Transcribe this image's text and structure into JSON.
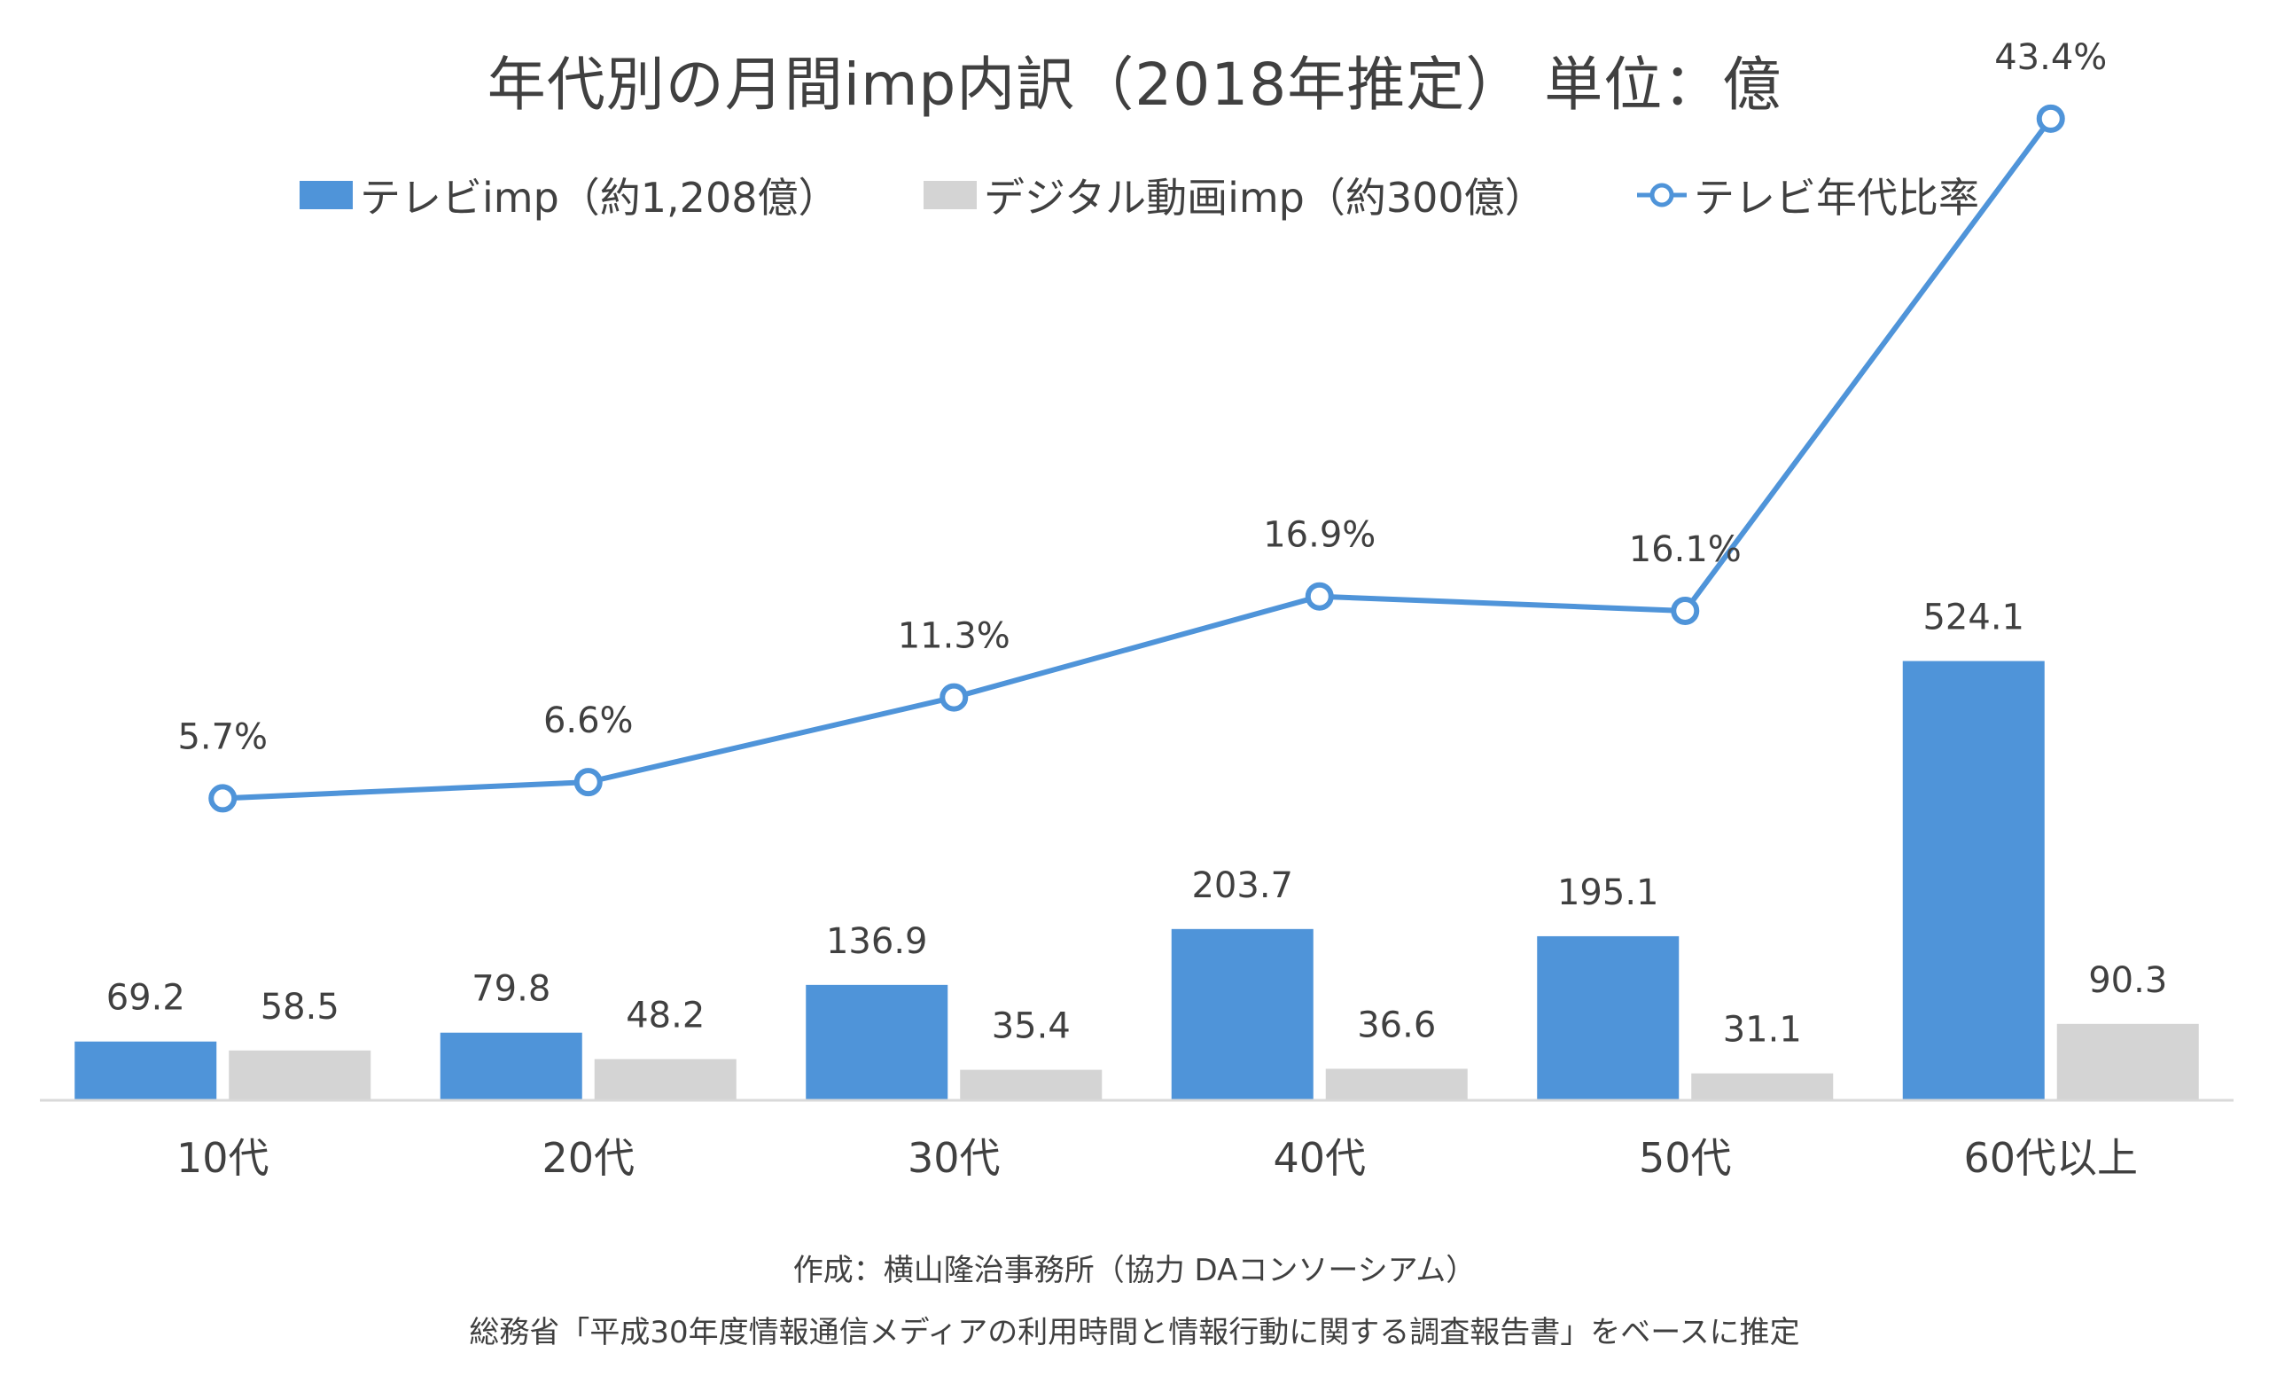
{
  "title": "年代別の月間imp内訳（2018年推定） 単位：億",
  "legend": {
    "tv_bar": "テレビimp（約1,208億）",
    "digital_bar": "デジタル動画imp（約300億）",
    "tv_ratio_line": "テレビ年代比率"
  },
  "colors": {
    "tv": "#4F94D9",
    "digital": "#D4D4D4",
    "line": "#4F94D9",
    "text": "#404040",
    "axis": "#D9D9D9"
  },
  "chart_data": {
    "type": "bar",
    "categories": [
      "10代",
      "20代",
      "30代",
      "40代",
      "50代",
      "60代以上"
    ],
    "series": [
      {
        "name": "テレビimp（約1,208億）",
        "kind": "bar",
        "values": [
          69.2,
          79.8,
          136.9,
          203.7,
          195.1,
          524.1
        ],
        "labels": [
          "69.2",
          "79.8",
          "136.9",
          "203.7",
          "195.1",
          "524.1"
        ]
      },
      {
        "name": "デジタル動画imp（約300億）",
        "kind": "bar",
        "values": [
          58.5,
          48.2,
          35.4,
          36.6,
          31.1,
          90.3
        ],
        "labels": [
          "58.5",
          "48.2",
          "35.4",
          "36.6",
          "31.1",
          "90.3"
        ]
      },
      {
        "name": "テレビ年代比率",
        "kind": "line",
        "values": [
          5.7,
          6.6,
          11.3,
          16.9,
          16.1,
          43.4
        ],
        "labels": [
          "5.7%",
          "6.6%",
          "11.3%",
          "16.9%",
          "16.1%",
          "43.4%"
        ]
      }
    ],
    "bar_ylim": [
      0,
      530
    ],
    "line_ylim": [
      -11,
      49
    ],
    "grid": false,
    "legend_position": "top-center"
  },
  "footer": {
    "credit": "作成：横山隆治事務所（協力 DAコンソーシアム）",
    "source": "総務省「平成30年度情報通信メディアの利用時間と情報行動に関する調査報告書」をベースに推定"
  }
}
